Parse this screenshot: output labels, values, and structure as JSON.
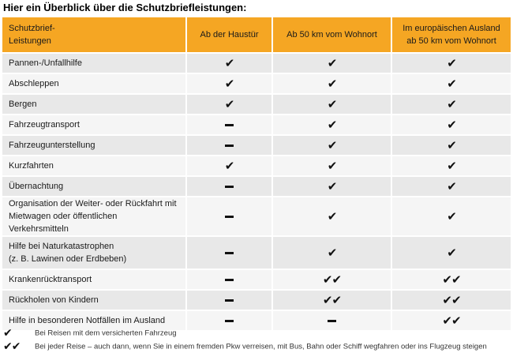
{
  "title": "Hier ein Überblick über die Schutzbriefleistungen:",
  "table": {
    "headers": [
      "Schutzbrief-\nLeistungen",
      "Ab der Haustür",
      "Ab 50 km vom Wohnort",
      "Im europäischen Ausland\nab 50 km vom Wohnort"
    ],
    "rows": [
      {
        "label": "Pannen-/Unfallhilfe",
        "marks": [
          "check",
          "check",
          "check"
        ]
      },
      {
        "label": "Abschleppen",
        "marks": [
          "check",
          "check",
          "check"
        ]
      },
      {
        "label": "Bergen",
        "marks": [
          "check",
          "check",
          "check"
        ]
      },
      {
        "label": "Fahrzeugtransport",
        "marks": [
          "dash",
          "check",
          "check"
        ]
      },
      {
        "label": "Fahrzeugunterstellung",
        "marks": [
          "dash",
          "check",
          "check"
        ]
      },
      {
        "label": "Kurzfahrten",
        "marks": [
          "check",
          "check",
          "check"
        ]
      },
      {
        "label": "Übernachtung",
        "marks": [
          "dash",
          "check",
          "check"
        ]
      },
      {
        "label": "Organisation der Weiter- oder Rückfahrt mit\nMietwagen oder öffentlichen Verkehrsmitteln",
        "marks": [
          "dash",
          "check",
          "check"
        ]
      },
      {
        "label": "Hilfe bei Naturkatastrophen\n(z. B. Lawinen oder Erdbeben)",
        "marks": [
          "dash",
          "check",
          "check"
        ]
      },
      {
        "label": "Krankenrücktransport",
        "marks": [
          "dash",
          "double-check",
          "double-check"
        ]
      },
      {
        "label": "Rückholen von Kindern",
        "marks": [
          "dash",
          "double-check",
          "double-check"
        ]
      },
      {
        "label": "Hilfe in besonderen Notfällen im Ausland",
        "marks": [
          "dash",
          "dash",
          "double-check"
        ]
      }
    ]
  },
  "legend": [
    {
      "symbol": "check",
      "text": "Bei Reisen mit dem versicherten Fahrzeug"
    },
    {
      "symbol": "double-check",
      "text": "Bei jeder Reise – auch dann, wenn Sie in einem fremden Pkw verreisen, mit Bus, Bahn oder Schiff wegfahren oder ins Flugzeug steigen"
    }
  ],
  "colors": {
    "header_bg": "#f5a623",
    "row_odd": "#e8e8e8",
    "row_even": "#f5f5f5"
  },
  "icons": {
    "check": "check-icon",
    "double-check": "double-check-icon",
    "dash": "dash-icon"
  }
}
